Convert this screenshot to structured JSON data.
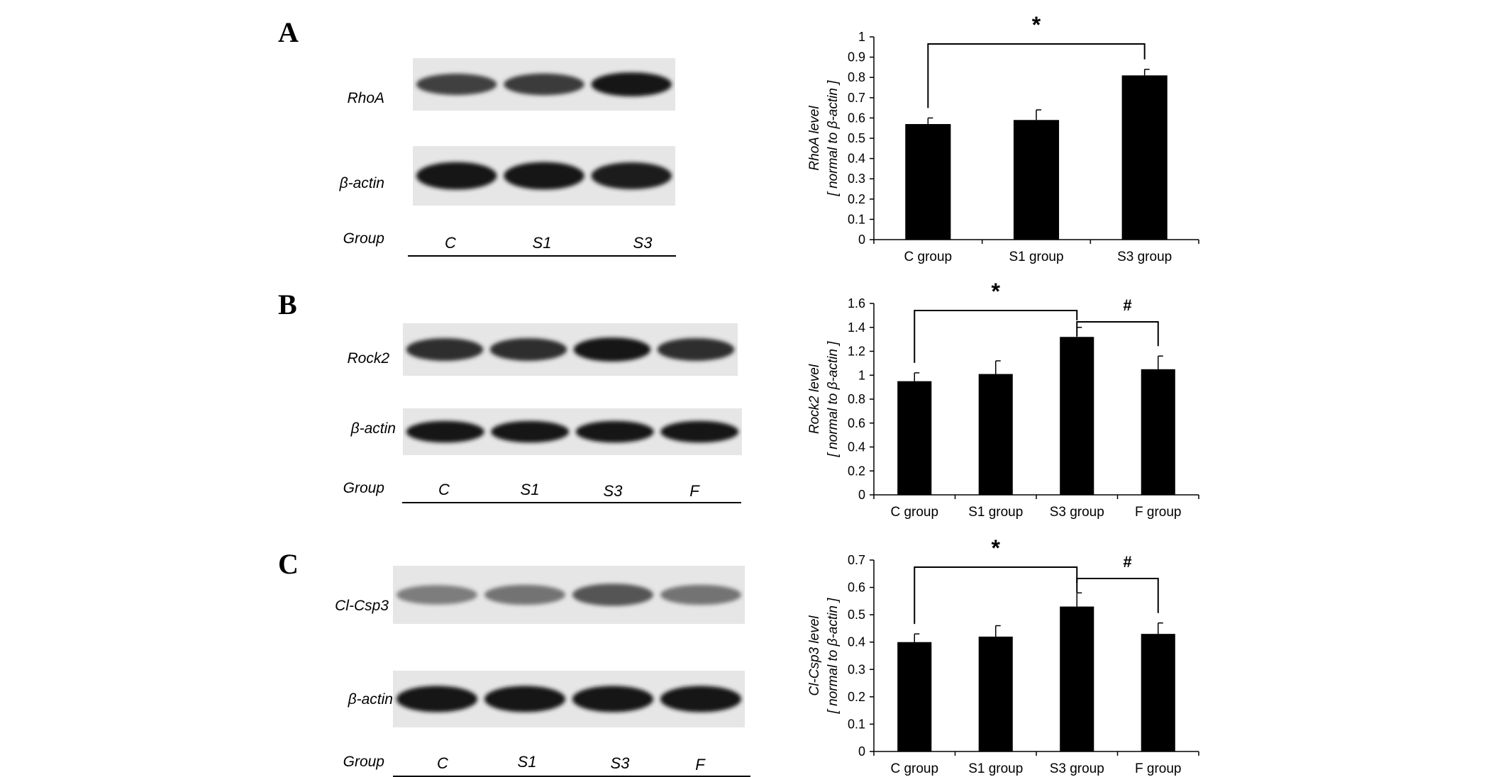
{
  "panels": [
    {
      "letter": "A",
      "blot": {
        "rows": [
          {
            "label": "RhoA",
            "intensities": [
              0.75,
              0.78,
              0.95
            ]
          },
          {
            "label": "β-actin",
            "intensities": [
              0.97,
              0.97,
              0.93
            ]
          }
        ],
        "group_label": "Group",
        "lanes": [
          "C",
          "S1",
          "S3"
        ]
      }
    },
    {
      "letter": "B",
      "blot": {
        "rows": [
          {
            "label": "Rock2",
            "intensities": [
              0.85,
              0.85,
              0.95,
              0.85
            ]
          },
          {
            "label": "β-actin",
            "intensities": [
              0.97,
              0.97,
              0.97,
              0.97
            ]
          }
        ],
        "group_label": "Group",
        "lanes": [
          "C",
          "S1",
          "S3",
          "F"
        ]
      }
    },
    {
      "letter": "C",
      "blot": {
        "rows": [
          {
            "label": "Cl-Csp3",
            "intensities": [
              0.45,
              0.5,
              0.65,
              0.5
            ]
          },
          {
            "label": "β-actin",
            "intensities": [
              0.97,
              0.97,
              0.97,
              0.97
            ]
          }
        ],
        "group_label": "Group",
        "lanes": [
          "C",
          "S1",
          "S3",
          "F"
        ]
      }
    }
  ],
  "chart_data": [
    {
      "type": "bar",
      "categories": [
        "C group",
        "S1 group",
        "S3 group"
      ],
      "values": [
        0.57,
        0.59,
        0.81
      ],
      "errors": [
        0.03,
        0.05,
        0.03
      ],
      "ylabel": [
        "RhoA  level",
        "[ normal to β-actin ]"
      ],
      "ylim": [
        0,
        1
      ],
      "yticks": [
        0,
        0.1,
        0.2,
        0.3,
        0.4,
        0.5,
        0.6,
        0.7,
        0.8,
        0.9,
        1
      ],
      "ytick_labels": [
        "0",
        "0.1",
        "0.2",
        "0.3",
        "0.4",
        "0.5",
        "0.6",
        "0.7",
        "0.8",
        "0.9",
        "1"
      ],
      "grid": false,
      "annotations": [
        {
          "from": 0,
          "to": 2,
          "symbol": "*"
        }
      ]
    },
    {
      "type": "bar",
      "categories": [
        "C group",
        "S1 group",
        "S3 group",
        "F group"
      ],
      "values": [
        0.95,
        1.01,
        1.32,
        1.05
      ],
      "errors": [
        0.07,
        0.11,
        0.08,
        0.11
      ],
      "ylabel": [
        "Rock2  level",
        "[ normal to β-actin ]"
      ],
      "ylim": [
        0,
        1.6
      ],
      "yticks": [
        0,
        0.2,
        0.4,
        0.6,
        0.8,
        1,
        1.2,
        1.4,
        1.6
      ],
      "ytick_labels": [
        "0",
        "0.2",
        "0.4",
        "0.6",
        "0.8",
        "1",
        "1.2",
        "1.4",
        "1.6"
      ],
      "grid": false,
      "annotations": [
        {
          "from": 0,
          "to": 2,
          "symbol": "*"
        },
        {
          "from": 2,
          "to": 3,
          "symbol": "#"
        }
      ]
    },
    {
      "type": "bar",
      "categories": [
        "C group",
        "S1 group",
        "S3 group",
        "F group"
      ],
      "values": [
        0.4,
        0.42,
        0.53,
        0.43
      ],
      "errors": [
        0.03,
        0.04,
        0.05,
        0.04
      ],
      "ylabel": [
        "Cl-Csp3  level",
        "[ normal to β-actin ]"
      ],
      "ylim": [
        0,
        0.7
      ],
      "yticks": [
        0,
        0.1,
        0.2,
        0.3,
        0.4,
        0.5,
        0.6,
        0.7
      ],
      "ytick_labels": [
        "0",
        "0.1",
        "0.2",
        "0.3",
        "0.4",
        "0.5",
        "0.6",
        "0.7"
      ],
      "grid": false,
      "annotations": [
        {
          "from": 0,
          "to": 2,
          "symbol": "*"
        },
        {
          "from": 2,
          "to": 3,
          "symbol": "#"
        }
      ]
    }
  ]
}
